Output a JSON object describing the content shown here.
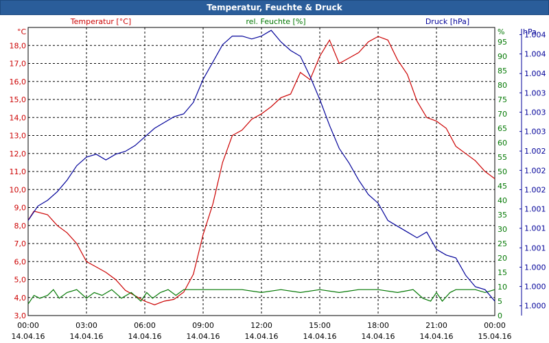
{
  "window": {
    "title": "Temperatur, Feuchte & Druck"
  },
  "chart_data": {
    "type": "line",
    "title": "Temperatur, Feuchte & Druck",
    "colors": {
      "temperature": "#cc0000",
      "humidity": "#007700",
      "pressure": "#000099",
      "grid": "#000000",
      "title_bar": "#2a5d9a"
    },
    "x_axis": {
      "range_hours": [
        0,
        24
      ],
      "ticks": [
        {
          "hours": 0,
          "time": "00:00",
          "date": "14.04.16"
        },
        {
          "hours": 3,
          "time": "03:00",
          "date": "14.04.16"
        },
        {
          "hours": 6,
          "time": "06:00",
          "date": "14.04.16"
        },
        {
          "hours": 9,
          "time": "09:00",
          "date": "14.04.16"
        },
        {
          "hours": 12,
          "time": "12:00",
          "date": "14.04.16"
        },
        {
          "hours": 15,
          "time": "15:00",
          "date": "14.04.16"
        },
        {
          "hours": 18,
          "time": "18:00",
          "date": "14.04.16"
        },
        {
          "hours": 21,
          "time": "21:00",
          "date": "14.04.16"
        },
        {
          "hours": 24,
          "time": "00:00",
          "date": "15.04.16"
        }
      ]
    },
    "axes": {
      "temperature": {
        "label": "Temperatur [°C]",
        "unit": "°C",
        "range": [
          3.0,
          19.0
        ],
        "ticks": [
          {
            "v": 3,
            "t": "3,0"
          },
          {
            "v": 4,
            "t": "4,0"
          },
          {
            "v": 5,
            "t": "5,0"
          },
          {
            "v": 6,
            "t": "6,0"
          },
          {
            "v": 7,
            "t": "7,0"
          },
          {
            "v": 8,
            "t": "8,0"
          },
          {
            "v": 9,
            "t": "9,0"
          },
          {
            "v": 10,
            "t": "10,0"
          },
          {
            "v": 11,
            "t": "11,0"
          },
          {
            "v": 12,
            "t": "12,0"
          },
          {
            "v": 13,
            "t": "13,0"
          },
          {
            "v": 14,
            "t": "14,0"
          },
          {
            "v": 15,
            "t": "15,0"
          },
          {
            "v": 16,
            "t": "16,0"
          },
          {
            "v": 17,
            "t": "17,0"
          },
          {
            "v": 18,
            "t": "18,0"
          }
        ]
      },
      "humidity": {
        "label": "rel. Feuchte [%]",
        "unit": "%",
        "range": [
          0,
          100
        ],
        "ticks": [
          {
            "v": 0,
            "t": "0"
          },
          {
            "v": 5,
            "t": "5"
          },
          {
            "v": 10,
            "t": "10"
          },
          {
            "v": 15,
            "t": "15"
          },
          {
            "v": 20,
            "t": "20"
          },
          {
            "v": 25,
            "t": "25"
          },
          {
            "v": 30,
            "t": "30"
          },
          {
            "v": 35,
            "t": "35"
          },
          {
            "v": 40,
            "t": "40"
          },
          {
            "v": 45,
            "t": "45"
          },
          {
            "v": 50,
            "t": "50"
          },
          {
            "v": 55,
            "t": "55"
          },
          {
            "v": 60,
            "t": "60"
          },
          {
            "v": 65,
            "t": "65"
          },
          {
            "v": 70,
            "t": "70"
          },
          {
            "v": 75,
            "t": "75"
          },
          {
            "v": 80,
            "t": "80"
          },
          {
            "v": 85,
            "t": "85"
          },
          {
            "v": 90,
            "t": "90"
          },
          {
            "v": 95,
            "t": "95"
          }
        ]
      },
      "pressure": {
        "label": "Druck [hPa]",
        "unit": "hPa",
        "range": [
          0,
          100
        ],
        "ticks": [
          {
            "v": 3.4,
            "t": "1.000"
          },
          {
            "v": 10.1,
            "t": "1.000"
          },
          {
            "v": 16.8,
            "t": "1.000"
          },
          {
            "v": 23.5,
            "t": "1.001"
          },
          {
            "v": 30.3,
            "t": "1.001"
          },
          {
            "v": 37.0,
            "t": "1.001"
          },
          {
            "v": 43.7,
            "t": "1.002"
          },
          {
            "v": 50.4,
            "t": "1.002"
          },
          {
            "v": 57.1,
            "t": "1.002"
          },
          {
            "v": 63.9,
            "t": "1.003"
          },
          {
            "v": 70.6,
            "t": "1.003"
          },
          {
            "v": 77.3,
            "t": "1.003"
          },
          {
            "v": 84.0,
            "t": "1.004"
          },
          {
            "v": 90.8,
            "t": "1.004"
          },
          {
            "v": 97.5,
            "t": "1.004"
          }
        ]
      }
    },
    "series": [
      {
        "name": "Temperatur [°C]",
        "axis": "temperature",
        "color": "#cc0000",
        "points": [
          [
            0,
            8.3
          ],
          [
            0.3,
            8.8
          ],
          [
            1,
            8.6
          ],
          [
            1.5,
            8.0
          ],
          [
            2,
            7.6
          ],
          [
            2.5,
            7.0
          ],
          [
            3,
            6.0
          ],
          [
            3.5,
            5.7
          ],
          [
            4,
            5.4
          ],
          [
            4.5,
            5.0
          ],
          [
            5,
            4.4
          ],
          [
            5.5,
            4.1
          ],
          [
            6,
            3.8
          ],
          [
            6.5,
            3.6
          ],
          [
            7,
            3.8
          ],
          [
            7.5,
            3.9
          ],
          [
            8,
            4.3
          ],
          [
            8.5,
            5.3
          ],
          [
            9,
            7.5
          ],
          [
            9.5,
            9.2
          ],
          [
            10,
            11.5
          ],
          [
            10.5,
            13.0
          ],
          [
            11,
            13.3
          ],
          [
            11.5,
            13.9
          ],
          [
            12,
            14.2
          ],
          [
            12.5,
            14.6
          ],
          [
            13,
            15.1
          ],
          [
            13.5,
            15.3
          ],
          [
            14,
            16.5
          ],
          [
            14.5,
            16.1
          ],
          [
            15,
            17.4
          ],
          [
            15.5,
            18.3
          ],
          [
            16,
            17.0
          ],
          [
            16.5,
            17.3
          ],
          [
            17,
            17.6
          ],
          [
            17.5,
            18.2
          ],
          [
            18,
            18.5
          ],
          [
            18.5,
            18.3
          ],
          [
            19,
            17.2
          ],
          [
            19.5,
            16.4
          ],
          [
            20,
            14.9
          ],
          [
            20.5,
            14.0
          ],
          [
            21,
            13.8
          ],
          [
            21.5,
            13.4
          ],
          [
            22,
            12.4
          ],
          [
            22.5,
            12.0
          ],
          [
            23,
            11.6
          ],
          [
            23.5,
            11.0
          ],
          [
            24,
            10.6
          ]
        ]
      },
      {
        "name": "rel. Feuchte [%]",
        "axis": "humidity",
        "color": "#007700",
        "points": [
          [
            0,
            4
          ],
          [
            0.3,
            7
          ],
          [
            0.6,
            6
          ],
          [
            1,
            7
          ],
          [
            1.3,
            9
          ],
          [
            1.6,
            6
          ],
          [
            2,
            8
          ],
          [
            2.5,
            9
          ],
          [
            3,
            6
          ],
          [
            3.4,
            8
          ],
          [
            3.8,
            7
          ],
          [
            4.3,
            9
          ],
          [
            4.8,
            6
          ],
          [
            5.3,
            8
          ],
          [
            5.8,
            5
          ],
          [
            6.1,
            8
          ],
          [
            6.4,
            6
          ],
          [
            6.8,
            8
          ],
          [
            7.2,
            9
          ],
          [
            7.6,
            7
          ],
          [
            8,
            9
          ],
          [
            9,
            9
          ],
          [
            10,
            9
          ],
          [
            11,
            9
          ],
          [
            12,
            8
          ],
          [
            13,
            9
          ],
          [
            14,
            8
          ],
          [
            15,
            9
          ],
          [
            16,
            8
          ],
          [
            17,
            9
          ],
          [
            18,
            9
          ],
          [
            19,
            8
          ],
          [
            19.8,
            9
          ],
          [
            20.3,
            6
          ],
          [
            20.7,
            5
          ],
          [
            21,
            8
          ],
          [
            21.3,
            5
          ],
          [
            21.7,
            8
          ],
          [
            22,
            9
          ],
          [
            23,
            9
          ],
          [
            23.5,
            8
          ],
          [
            24,
            9
          ]
        ]
      },
      {
        "name": "Druck [hPa]",
        "axis": "pressure",
        "color": "#000099",
        "points": [
          [
            0,
            33
          ],
          [
            0.5,
            38
          ],
          [
            1,
            40
          ],
          [
            1.5,
            43
          ],
          [
            2,
            47
          ],
          [
            2.5,
            52
          ],
          [
            3,
            55
          ],
          [
            3.5,
            56
          ],
          [
            4,
            54
          ],
          [
            4.5,
            56
          ],
          [
            5,
            57
          ],
          [
            5.5,
            59
          ],
          [
            6,
            62
          ],
          [
            6.5,
            65
          ],
          [
            7,
            67
          ],
          [
            7.5,
            69
          ],
          [
            8,
            70
          ],
          [
            8.5,
            74
          ],
          [
            9,
            82
          ],
          [
            9.5,
            88
          ],
          [
            10,
            94
          ],
          [
            10.5,
            97
          ],
          [
            11,
            97
          ],
          [
            11.5,
            96
          ],
          [
            12,
            97
          ],
          [
            12.5,
            99
          ],
          [
            13,
            95
          ],
          [
            13.5,
            92
          ],
          [
            14,
            90
          ],
          [
            14.5,
            83
          ],
          [
            15,
            75
          ],
          [
            15.5,
            66
          ],
          [
            16,
            58
          ],
          [
            16.5,
            53
          ],
          [
            17,
            47
          ],
          [
            17.5,
            42
          ],
          [
            18,
            39
          ],
          [
            18.5,
            33
          ],
          [
            19,
            31
          ],
          [
            19.5,
            29
          ],
          [
            20,
            27
          ],
          [
            20.5,
            29
          ],
          [
            21,
            23
          ],
          [
            21.5,
            21
          ],
          [
            22,
            20
          ],
          [
            22.5,
            14
          ],
          [
            23,
            10
          ],
          [
            23.5,
            9
          ],
          [
            24,
            5
          ]
        ]
      }
    ]
  }
}
